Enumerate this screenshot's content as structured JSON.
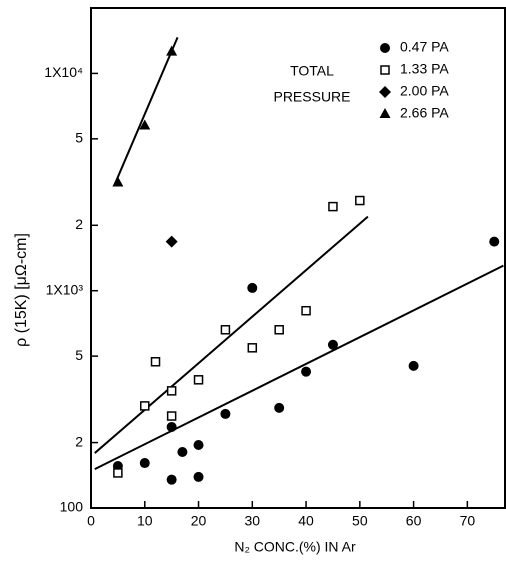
{
  "chart_data": {
    "type": "scatter",
    "x_label": "N₂ CONC.(%) IN Ar",
    "y_label": "ρ (15K) [μΩ-cm]",
    "legend_title": [
      "TOTAL",
      "PRESSURE"
    ],
    "log_y": true,
    "xlim": [
      0,
      77
    ],
    "xticks": [
      0,
      10,
      20,
      30,
      40,
      50,
      60,
      70
    ],
    "ylim": [
      100,
      20000
    ],
    "yticks": [
      100,
      {
        "value": 200,
        "label": "2"
      },
      {
        "value": 500,
        "label": "5"
      },
      {
        "value": 1000,
        "label": "1X10³"
      },
      {
        "value": 2000,
        "label": "2"
      },
      {
        "value": 5000,
        "label": "5"
      },
      {
        "value": 10000,
        "label": "1X10⁴"
      }
    ],
    "series": [
      {
        "name": "0.47 PA",
        "marker": "circle",
        "color": "#000000",
        "x": [
          5,
          10,
          15,
          15,
          17,
          20,
          20,
          25,
          30,
          35,
          40,
          45,
          60,
          75
        ],
        "values": [
          156,
          161,
          236,
          135,
          181,
          195,
          139,
          271,
          1030,
          289,
          424,
          564,
          451,
          1682
        ]
      },
      {
        "name": "1.33 PA",
        "marker": "square",
        "color": "#000000",
        "x": [
          5,
          10,
          12,
          15,
          15,
          20,
          25,
          30,
          35,
          40,
          45,
          50
        ],
        "values": [
          145,
          295,
          471,
          346,
          265,
          389,
          661,
          546,
          661,
          809,
          2438,
          2600
        ]
      },
      {
        "name": "2.00 PA",
        "marker": "diamond",
        "color": "#000000",
        "x": [
          15
        ],
        "values": [
          1682
        ]
      },
      {
        "name": "2.66 PA",
        "marker": "triangle",
        "color": "#000000",
        "x": [
          5,
          10,
          15
        ],
        "values": [
          3147,
          5758,
          12600
        ]
      }
    ],
    "fit_lines": [
      {
        "x": [
          0.7,
          51.5
        ],
        "values": [
          179,
          2193
        ]
      },
      {
        "x": [
          0.7,
          76.7
        ],
        "values": [
          151,
          1304
        ]
      },
      {
        "x": [
          4.4,
          16.1
        ],
        "values": [
          3080,
          14650
        ]
      }
    ]
  }
}
